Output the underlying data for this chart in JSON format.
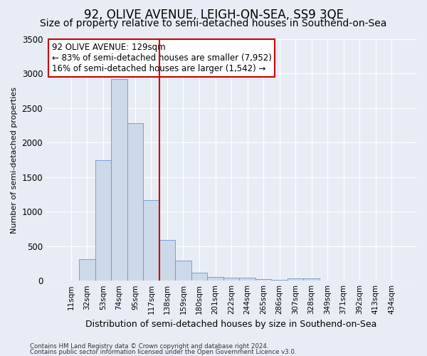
{
  "title": "92, OLIVE AVENUE, LEIGH-ON-SEA, SS9 3QE",
  "subtitle": "Size of property relative to semi-detached houses in Southend-on-Sea",
  "xlabel": "Distribution of semi-detached houses by size in Southend-on-Sea",
  "ylabel": "Number of semi-detached properties",
  "bin_labels": [
    "11sqm",
    "32sqm",
    "53sqm",
    "74sqm",
    "95sqm",
    "117sqm",
    "138sqm",
    "159sqm",
    "180sqm",
    "201sqm",
    "222sqm",
    "244sqm",
    "265sqm",
    "286sqm",
    "307sqm",
    "328sqm",
    "349sqm",
    "371sqm",
    "392sqm",
    "413sqm",
    "434sqm"
  ],
  "bar_values": [
    5,
    310,
    1750,
    2920,
    2280,
    1170,
    585,
    295,
    120,
    55,
    40,
    40,
    20,
    10,
    35,
    35,
    5,
    5,
    5,
    5,
    5
  ],
  "bar_color": "#ccd9e8",
  "bar_edge_color": "#6699cc",
  "vline_x_index": 6,
  "vline_color": "#cc0000",
  "annotation_text": "92 OLIVE AVENUE: 129sqm\n← 83% of semi-detached houses are smaller (7,952)\n16% of semi-detached houses are larger (1,542) →",
  "annotation_box_edge": "#cc0000",
  "ylim": [
    0,
    3500
  ],
  "yticks": [
    0,
    500,
    1000,
    1500,
    2000,
    2500,
    3000,
    3500
  ],
  "footnote1": "Contains HM Land Registry data © Crown copyright and database right 2024.",
  "footnote2": "Contains public sector information licensed under the Open Government Licence v3.0.",
  "title_fontsize": 12,
  "subtitle_fontsize": 10,
  "xlabel_fontsize": 9,
  "ylabel_fontsize": 8,
  "bg_color": "#e8edf5",
  "plot_bg_color": "#e8edf5"
}
